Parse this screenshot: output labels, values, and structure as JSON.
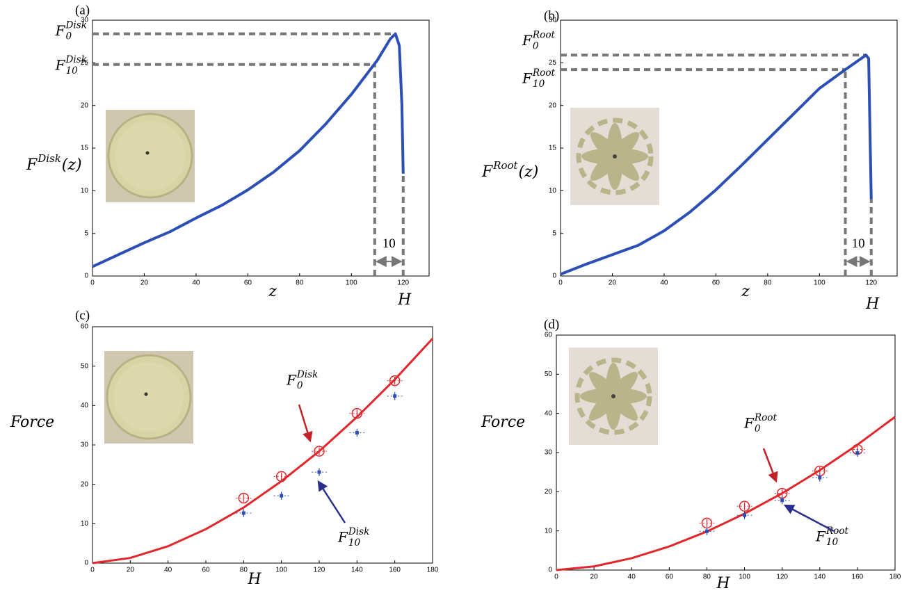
{
  "chart_data": [
    {
      "type": "line",
      "panel_label": "(a)",
      "x": [
        0,
        10,
        20,
        30,
        40,
        50,
        60,
        70,
        80,
        90,
        100,
        110,
        115,
        117,
        118.5,
        119.5,
        120
      ],
      "series": [
        {
          "color": "#2c4fb5",
          "values": [
            1.1,
            2.5,
            3.9,
            5.2,
            6.8,
            8.3,
            10.1,
            12.2,
            14.7,
            17.8,
            21.3,
            25.3,
            27.8,
            28.4,
            27,
            20,
            12
          ]
        }
      ],
      "xlim": [
        0,
        130
      ],
      "ylim": [
        0,
        30
      ],
      "xticks": [
        0,
        20,
        40,
        60,
        80,
        100,
        120
      ],
      "yticks": [
        0,
        5,
        10,
        15,
        20,
        25,
        30
      ],
      "x_label": "z",
      "y_label": {
        "base": "F",
        "sup": "Disk",
        "tail": "(z)"
      },
      "guides": [
        {
          "label": {
            "base": "F",
            "sup": "Disk",
            "sub": "0"
          },
          "x": 117,
          "y": 28.4
        },
        {
          "label": {
            "base": "F",
            "sup": "Disk",
            "sub": "10"
          },
          "x": 109,
          "y": 24.8
        }
      ],
      "marker": {
        "label": "H",
        "x": 120
      },
      "span_label": "10"
    },
    {
      "type": "line",
      "panel_label": "(b)",
      "x": [
        0,
        10,
        20,
        30,
        40,
        50,
        60,
        70,
        80,
        90,
        100,
        110,
        118,
        119,
        120
      ],
      "series": [
        {
          "color": "#2c4fb5",
          "values": [
            0.2,
            1.4,
            2.5,
            3.6,
            5.3,
            7.5,
            10.1,
            13,
            16,
            19,
            22,
            24.2,
            25.9,
            25.5,
            9
          ]
        }
      ],
      "xlim": [
        0,
        130
      ],
      "ylim": [
        0,
        30
      ],
      "xticks": [
        0,
        20,
        40,
        60,
        80,
        100,
        120
      ],
      "yticks": [
        0,
        5,
        10,
        15,
        20,
        25,
        30
      ],
      "x_label": "z",
      "y_label": {
        "base": "F",
        "sup": "Root",
        "tail": "(z)"
      },
      "guides": [
        {
          "label": {
            "base": "F",
            "sup": "Root",
            "sub": "0"
          },
          "x": 118,
          "y": 25.9
        },
        {
          "label": {
            "base": "F",
            "sup": "Root",
            "sub": "10"
          },
          "x": 110,
          "y": 24.2
        }
      ],
      "marker": {
        "label": "H",
        "x": 120
      },
      "span_label": "10"
    },
    {
      "type": "scatter",
      "panel_label": "(c)",
      "x": [
        80,
        100,
        120,
        140,
        160
      ],
      "series": [
        {
          "color": "#e3262b",
          "marker": "circle",
          "values": [
            16.5,
            22,
            28.4,
            38,
            46.3
          ],
          "xerr": [
            4,
            4,
            4,
            4,
            4
          ],
          "yerr": [
            1,
            1,
            1,
            1,
            1
          ]
        },
        {
          "color": "#2c4fb5",
          "marker": "square",
          "values": [
            12.7,
            17.1,
            23.1,
            33.1,
            42.4
          ],
          "xerr": [
            4,
            4,
            4,
            4,
            4
          ],
          "yerr": [
            1,
            1,
            1,
            1,
            1
          ]
        }
      ],
      "fit": {
        "color": "#e3262b",
        "x": [
          0,
          20,
          40,
          60,
          80,
          100,
          120,
          140,
          160,
          180
        ],
        "values": [
          0,
          1.31,
          4.29,
          8.62,
          14.1,
          20.8,
          28.4,
          37.1,
          46.6,
          57
        ]
      },
      "xlim": [
        0,
        180
      ],
      "ylim": [
        0,
        60
      ],
      "xticks": [
        0,
        20,
        40,
        60,
        80,
        100,
        120,
        140,
        160,
        180
      ],
      "yticks": [
        0,
        10,
        20,
        30,
        40,
        50,
        60
      ],
      "x_label": "H",
      "y_label": {
        "base": "Force"
      },
      "annotations": [
        {
          "base": "F",
          "sup": "Disk",
          "sub": "0"
        },
        {
          "base": "F",
          "sup": "Disk",
          "sub": "10"
        }
      ]
    },
    {
      "type": "scatter",
      "panel_label": "(d)",
      "x": [
        80,
        100,
        120,
        140,
        160
      ],
      "series": [
        {
          "color": "#e3262b",
          "marker": "circle",
          "values": [
            12,
            16.3,
            19.6,
            25.3,
            30.8
          ],
          "xerr": [
            4,
            4,
            4,
            4,
            4
          ],
          "yerr": [
            1,
            1,
            1,
            1,
            1
          ]
        },
        {
          "color": "#2c4fb5",
          "marker": "square",
          "values": [
            9.9,
            14,
            17.8,
            23.6,
            29.9
          ],
          "xerr": [
            4,
            4,
            4,
            4,
            4
          ],
          "yerr": [
            1,
            1,
            1,
            1,
            1
          ]
        }
      ],
      "fit": {
        "color": "#e3262b",
        "x": [
          0,
          20,
          40,
          60,
          80,
          100,
          120,
          140,
          160,
          180
        ],
        "values": [
          0,
          0.93,
          3.03,
          6.03,
          9.84,
          14.4,
          19.6,
          25.5,
          32,
          39.1
        ]
      },
      "xlim": [
        0,
        180
      ],
      "ylim": [
        0,
        60
      ],
      "xticks": [
        0,
        20,
        40,
        60,
        80,
        100,
        120,
        140,
        160,
        180
      ],
      "yticks": [
        0,
        10,
        20,
        30,
        40,
        50,
        60
      ],
      "x_label": "H",
      "y_label": {
        "base": "Force"
      },
      "annotations": [
        {
          "base": "F",
          "sup": "Root",
          "sub": "0"
        },
        {
          "base": "F",
          "sup": "Root",
          "sub": "10"
        }
      ]
    }
  ]
}
